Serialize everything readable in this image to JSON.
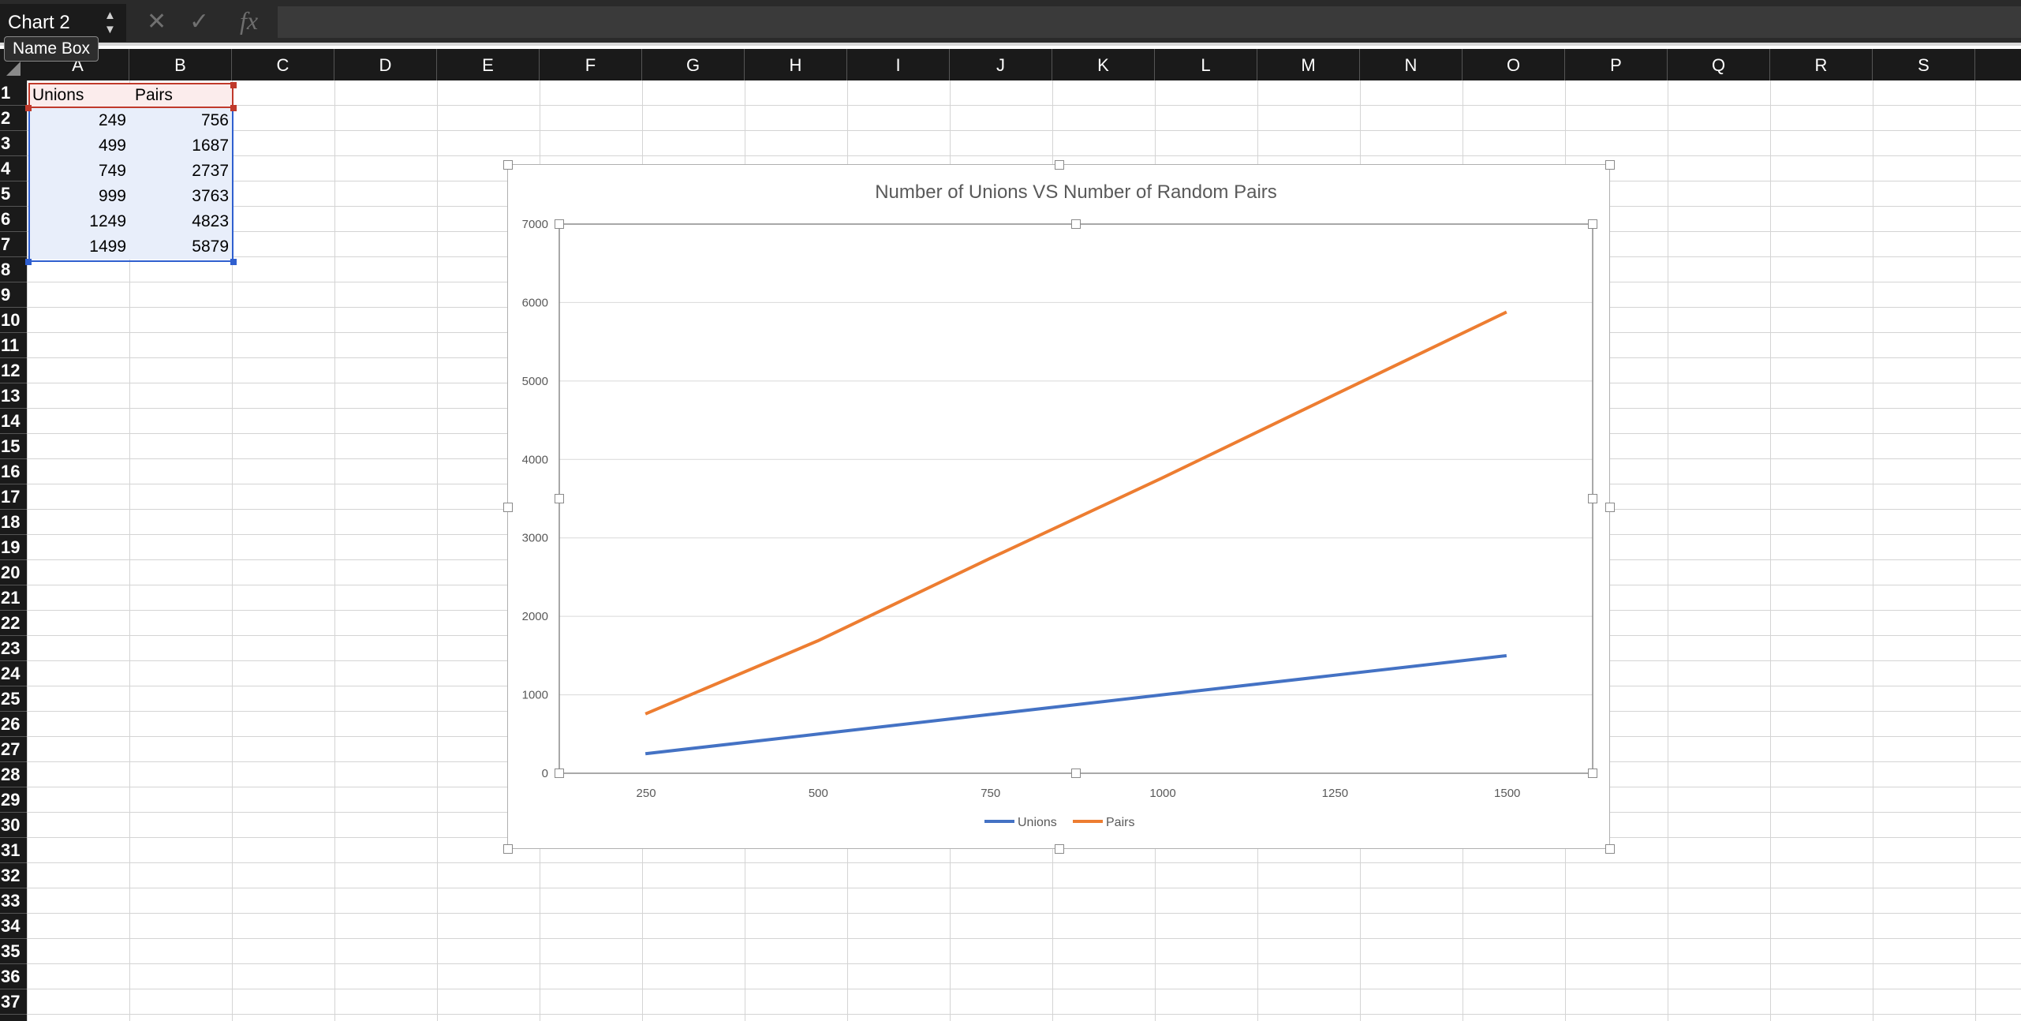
{
  "formula_bar": {
    "name_box_value": "Chart 2",
    "tooltip": "Name Box",
    "formula": ""
  },
  "columns": [
    "A",
    "B",
    "C",
    "D",
    "E",
    "F",
    "G",
    "H",
    "I",
    "J",
    "K",
    "L",
    "M",
    "N",
    "O",
    "P",
    "Q",
    "R",
    "S"
  ],
  "rows": [
    "1",
    "2",
    "3",
    "4",
    "5",
    "6",
    "7",
    "8",
    "9",
    "10",
    "11",
    "12",
    "13",
    "14",
    "15",
    "16",
    "17",
    "18",
    "19",
    "20",
    "21",
    "22",
    "23",
    "24",
    "25",
    "26",
    "27",
    "28",
    "29",
    "30",
    "31",
    "32",
    "33",
    "34",
    "35",
    "36",
    "37"
  ],
  "sheet": {
    "header": [
      "Unions",
      "Pairs"
    ],
    "data": [
      [
        "249",
        "756"
      ],
      [
        "499",
        "1687"
      ],
      [
        "749",
        "2737"
      ],
      [
        "999",
        "3763"
      ],
      [
        "1249",
        "4823"
      ],
      [
        "1499",
        "5879"
      ]
    ]
  },
  "colors": {
    "unions": "#4472c4",
    "pairs": "#ed7d31",
    "selection_header": "#c0392b",
    "selection_data": "#2f5fcf"
  },
  "chart_data": {
    "type": "line",
    "title": "Number of Unions VS Number of Random Pairs",
    "x": [
      249,
      499,
      749,
      999,
      1249,
      1499
    ],
    "x_ticks": [
      "250",
      "500",
      "750",
      "1000",
      "1250",
      "1500"
    ],
    "x_tick_values": [
      250,
      500,
      750,
      1000,
      1250,
      1500
    ],
    "xlim": [
      124,
      1624
    ],
    "y_ticks": [
      "0",
      "1000",
      "2000",
      "3000",
      "4000",
      "5000",
      "6000",
      "7000"
    ],
    "ylim": [
      0,
      7000
    ],
    "grid": true,
    "legend": "bottom",
    "series": [
      {
        "name": "Unions",
        "values": [
          249,
          499,
          749,
          999,
          1249,
          1499
        ]
      },
      {
        "name": "Pairs",
        "values": [
          756,
          1687,
          2737,
          3763,
          4823,
          5879
        ]
      }
    ]
  }
}
